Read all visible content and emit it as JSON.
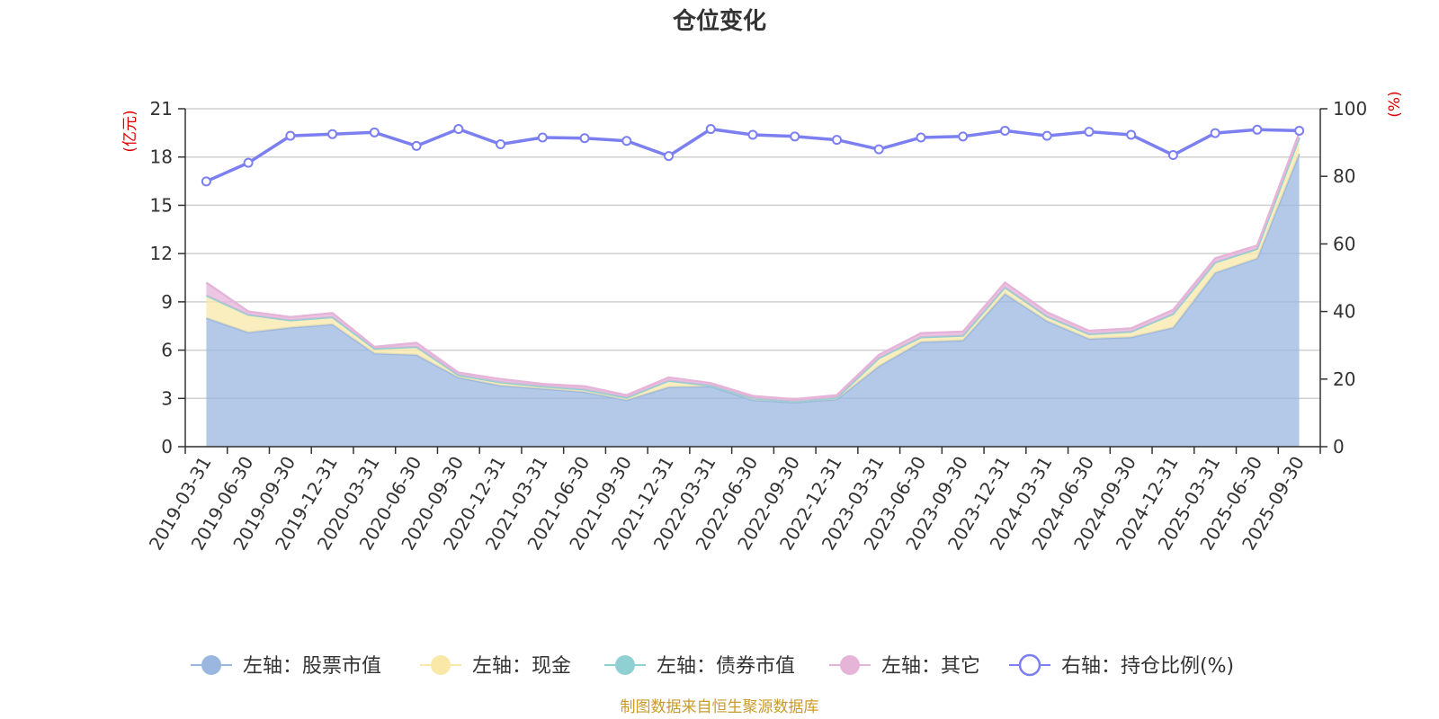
{
  "chart_data": {
    "type": "area",
    "title": "仓位变化",
    "left_unit": "(亿元)",
    "right_unit": "(%)",
    "left_ticks": [
      "0",
      "3",
      "6",
      "9",
      "12",
      "15",
      "18",
      "21"
    ],
    "right_ticks": [
      "0",
      "20",
      "40",
      "60",
      "80",
      "100"
    ],
    "ylim_left": [
      0,
      21
    ],
    "ylim_right": [
      0,
      100
    ],
    "grid": true,
    "legend_position": "bottom",
    "categories": [
      "2019-03-31",
      "2019-06-30",
      "2019-09-30",
      "2019-12-31",
      "2020-03-31",
      "2020-06-30",
      "2020-09-30",
      "2020-12-31",
      "2021-03-31",
      "2021-06-30",
      "2021-09-30",
      "2021-12-31",
      "2022-03-31",
      "2022-06-30",
      "2022-09-30",
      "2022-12-31",
      "2023-03-31",
      "2023-06-30",
      "2023-09-30",
      "2023-12-31",
      "2024-03-31",
      "2024-06-30",
      "2024-09-30",
      "2024-12-31",
      "2025-03-31",
      "2025-06-30",
      "2025-09-30"
    ],
    "series": [
      {
        "name": "左轴：股票市值",
        "axis": "left",
        "color": "#9bb7e0",
        "values": [
          8.0,
          7.1,
          7.4,
          7.6,
          5.8,
          5.7,
          4.3,
          3.8,
          3.6,
          3.4,
          2.9,
          3.7,
          3.75,
          2.9,
          2.75,
          2.95,
          5.0,
          6.5,
          6.6,
          9.5,
          7.8,
          6.7,
          6.8,
          7.4,
          10.8,
          11.7,
          18.2
        ]
      },
      {
        "name": "左轴：现金",
        "axis": "left",
        "color": "#f9e8a8",
        "values": [
          1.4,
          1.1,
          0.45,
          0.45,
          0.3,
          0.5,
          0.15,
          0.2,
          0.15,
          0.15,
          0.15,
          0.4,
          0.05,
          0.1,
          0.05,
          0.1,
          0.5,
          0.3,
          0.3,
          0.4,
          0.3,
          0.3,
          0.35,
          0.85,
          0.65,
          0.6,
          1.0
        ]
      },
      {
        "name": "左轴：债券市值",
        "axis": "left",
        "color": "#8fd0d3",
        "values": [
          0,
          0,
          0,
          0,
          0,
          0,
          0,
          0,
          0,
          0,
          0,
          0,
          0,
          0,
          0,
          0,
          0,
          0,
          0,
          0,
          0,
          0,
          0,
          0,
          0,
          0,
          0
        ]
      },
      {
        "name": "左轴：其它",
        "axis": "left",
        "color": "#e6b3d9",
        "values": [
          0.8,
          0.2,
          0.2,
          0.25,
          0.1,
          0.25,
          0.15,
          0.2,
          0.15,
          0.2,
          0.15,
          0.2,
          0.15,
          0.15,
          0.15,
          0.15,
          0.2,
          0.25,
          0.25,
          0.3,
          0.25,
          0.2,
          0.2,
          0.25,
          0.25,
          0.2,
          0.3
        ]
      },
      {
        "name": "右轴：持仓比例(%)",
        "axis": "right",
        "color": "#7b7ff0",
        "values": [
          78.5,
          84,
          92,
          92.5,
          93,
          89,
          94,
          89.5,
          91.5,
          91.3,
          90.5,
          86,
          94,
          92.3,
          91.8,
          90.8,
          88,
          91.5,
          91.8,
          93.5,
          92,
          93.2,
          92.3,
          86.3,
          92.8,
          93.8,
          93.5
        ]
      }
    ],
    "footnote": "制图数据来自恒生聚源数据库"
  }
}
